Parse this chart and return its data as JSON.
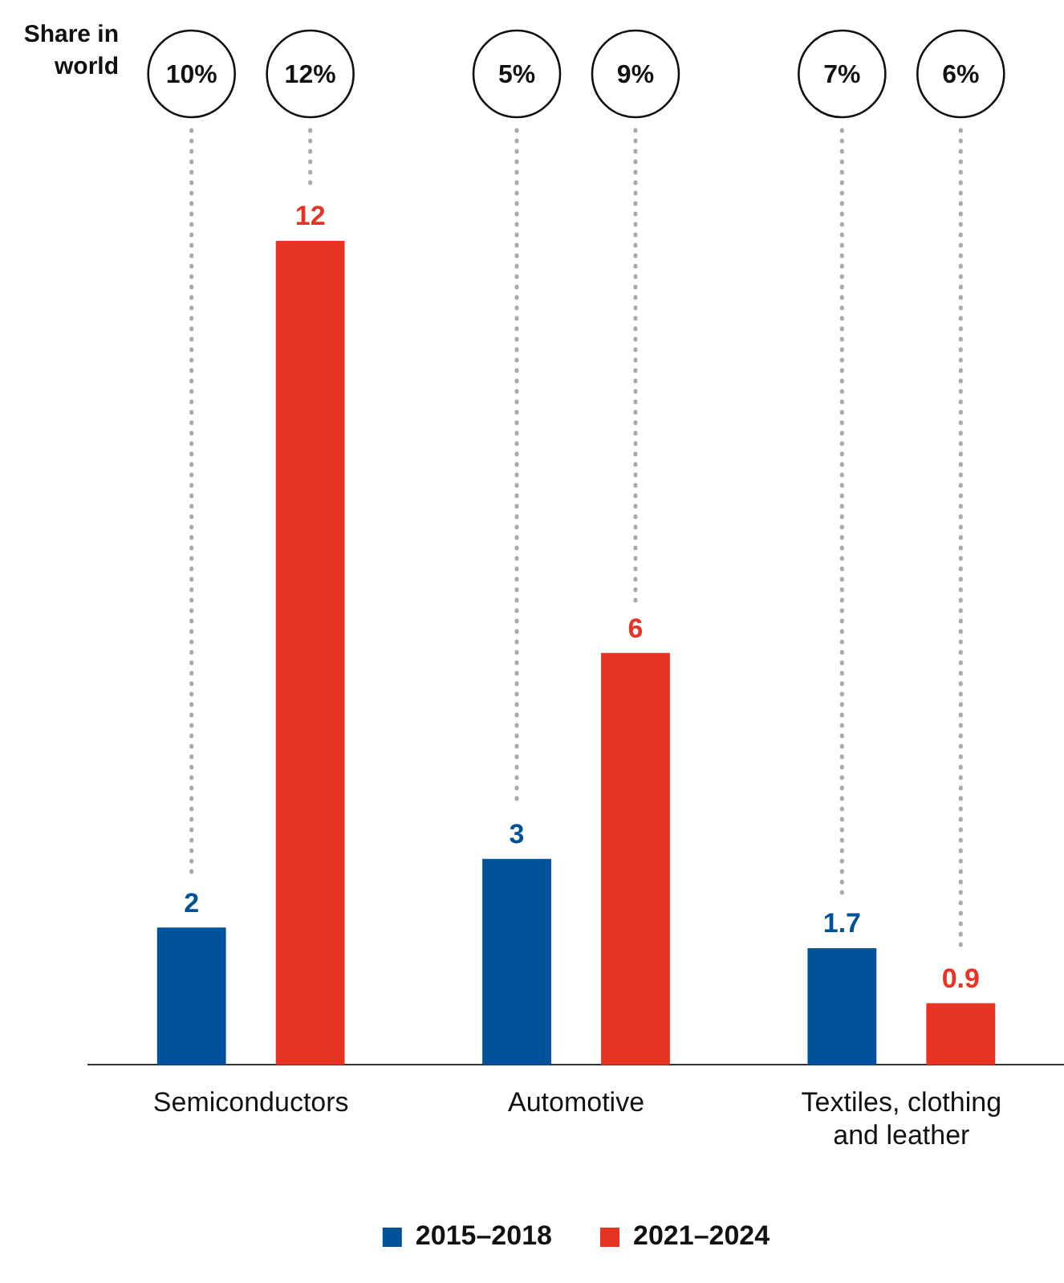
{
  "chart_data": {
    "type": "bar",
    "categories": [
      "Semiconductors",
      "Automotive",
      "Textiles, clothing and leather"
    ],
    "series": [
      {
        "name": "2015–2018",
        "color": "#00529b",
        "values": [
          2,
          3,
          1.7
        ]
      },
      {
        "name": "2021–2024",
        "color": "#e63323",
        "values": [
          12,
          6,
          0.9
        ]
      }
    ],
    "data_labels": true,
    "legend": "bottom",
    "grid": false,
    "annotations": [
      "Share in world",
      "10%",
      "12%",
      "5%",
      "9%",
      "7%",
      "6%"
    ]
  }
}
